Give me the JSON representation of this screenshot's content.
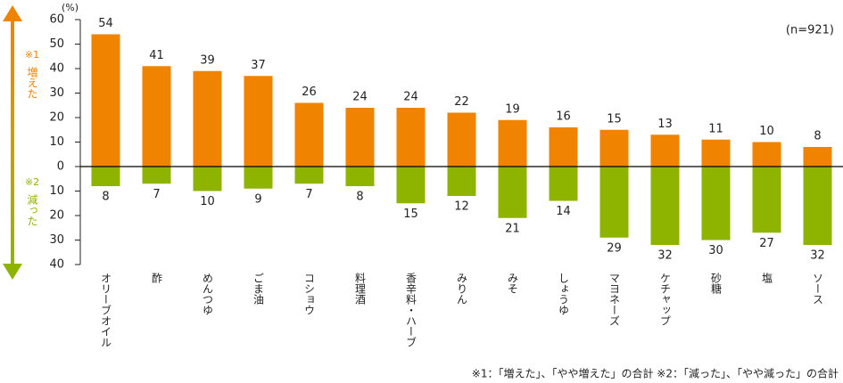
{
  "chart_data": {
    "type": "diverging_bar",
    "y_unit_label": "(%)",
    "sample_note": "(n=921)",
    "footnote": "※1：「増えた」、「やや増えた」の合計 ※2：「減った」、「やや減った」の合計",
    "annotations": [
      {
        "mark": "※1",
        "text": "増えた",
        "color": "#f08300"
      },
      {
        "mark": "※2",
        "text": "減った",
        "color": "#8fb400"
      }
    ],
    "categories": [
      "オリーブオイル",
      "酢",
      "めんつゆ",
      "ごま油",
      "コショウ",
      "料理酒",
      "香辛料・ハーブ",
      "みりん",
      "みそ",
      "しょうゆ",
      "マヨネーズ",
      "ケチャップ",
      "砂糖",
      "塩",
      "ソース"
    ],
    "series": [
      {
        "name": "増えた",
        "color": "#f08300",
        "values": [
          54,
          41,
          39,
          37,
          26,
          24,
          24,
          22,
          19,
          16,
          15,
          13,
          11,
          10,
          8
        ]
      },
      {
        "name": "減った",
        "color": "#8fb400",
        "values": [
          -8,
          -7,
          -10,
          -9,
          -7,
          -8,
          -15,
          -12,
          -21,
          -14,
          -29,
          -32,
          -30,
          -27,
          -32
        ],
        "value_labels": [
          "8",
          "7",
          "10",
          "9",
          "7",
          "8",
          "15",
          "12",
          "21",
          "14",
          "29",
          "32",
          "30",
          "27",
          "32"
        ]
      }
    ],
    "ylim": [
      -40,
      60
    ],
    "yticks": [
      60,
      50,
      40,
      30,
      20,
      10,
      0,
      {
        "value": -10,
        "label": "10"
      },
      {
        "value": -20,
        "label": "20"
      },
      {
        "value": -30,
        "label": "30"
      },
      {
        "value": -40,
        "label": "40"
      }
    ]
  }
}
